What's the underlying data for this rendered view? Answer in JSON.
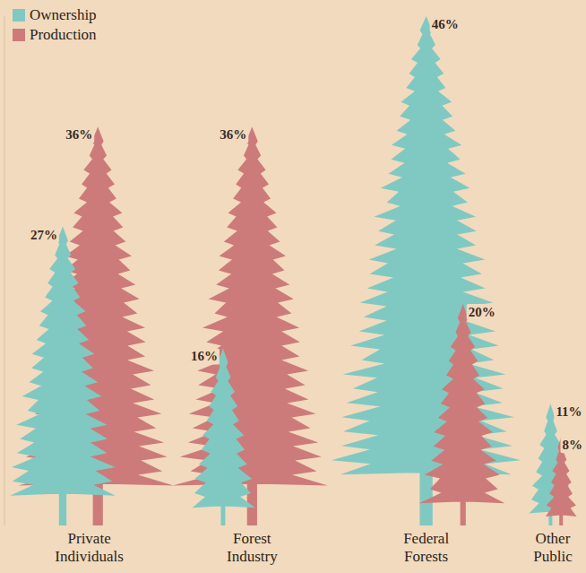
{
  "chart_data": {
    "type": "bar",
    "categories": [
      "Private Individuals",
      "Forest Industry",
      "Federal Forests",
      "Other Public"
    ],
    "series": [
      {
        "name": "Ownership",
        "color": "#80c9c2",
        "values": [
          27,
          16,
          46,
          11
        ],
        "value_labels": [
          "27%",
          "16%",
          "46%",
          "11%"
        ]
      },
      {
        "name": "Production",
        "color": "#cd7b7a",
        "values": [
          36,
          36,
          20,
          8
        ],
        "value_labels": [
          "36%",
          "36%",
          "20%",
          "8%"
        ]
      }
    ],
    "ylim": [
      0,
      46
    ],
    "data_labels": true,
    "tick_labels": "x",
    "legend": "top-left"
  }
}
